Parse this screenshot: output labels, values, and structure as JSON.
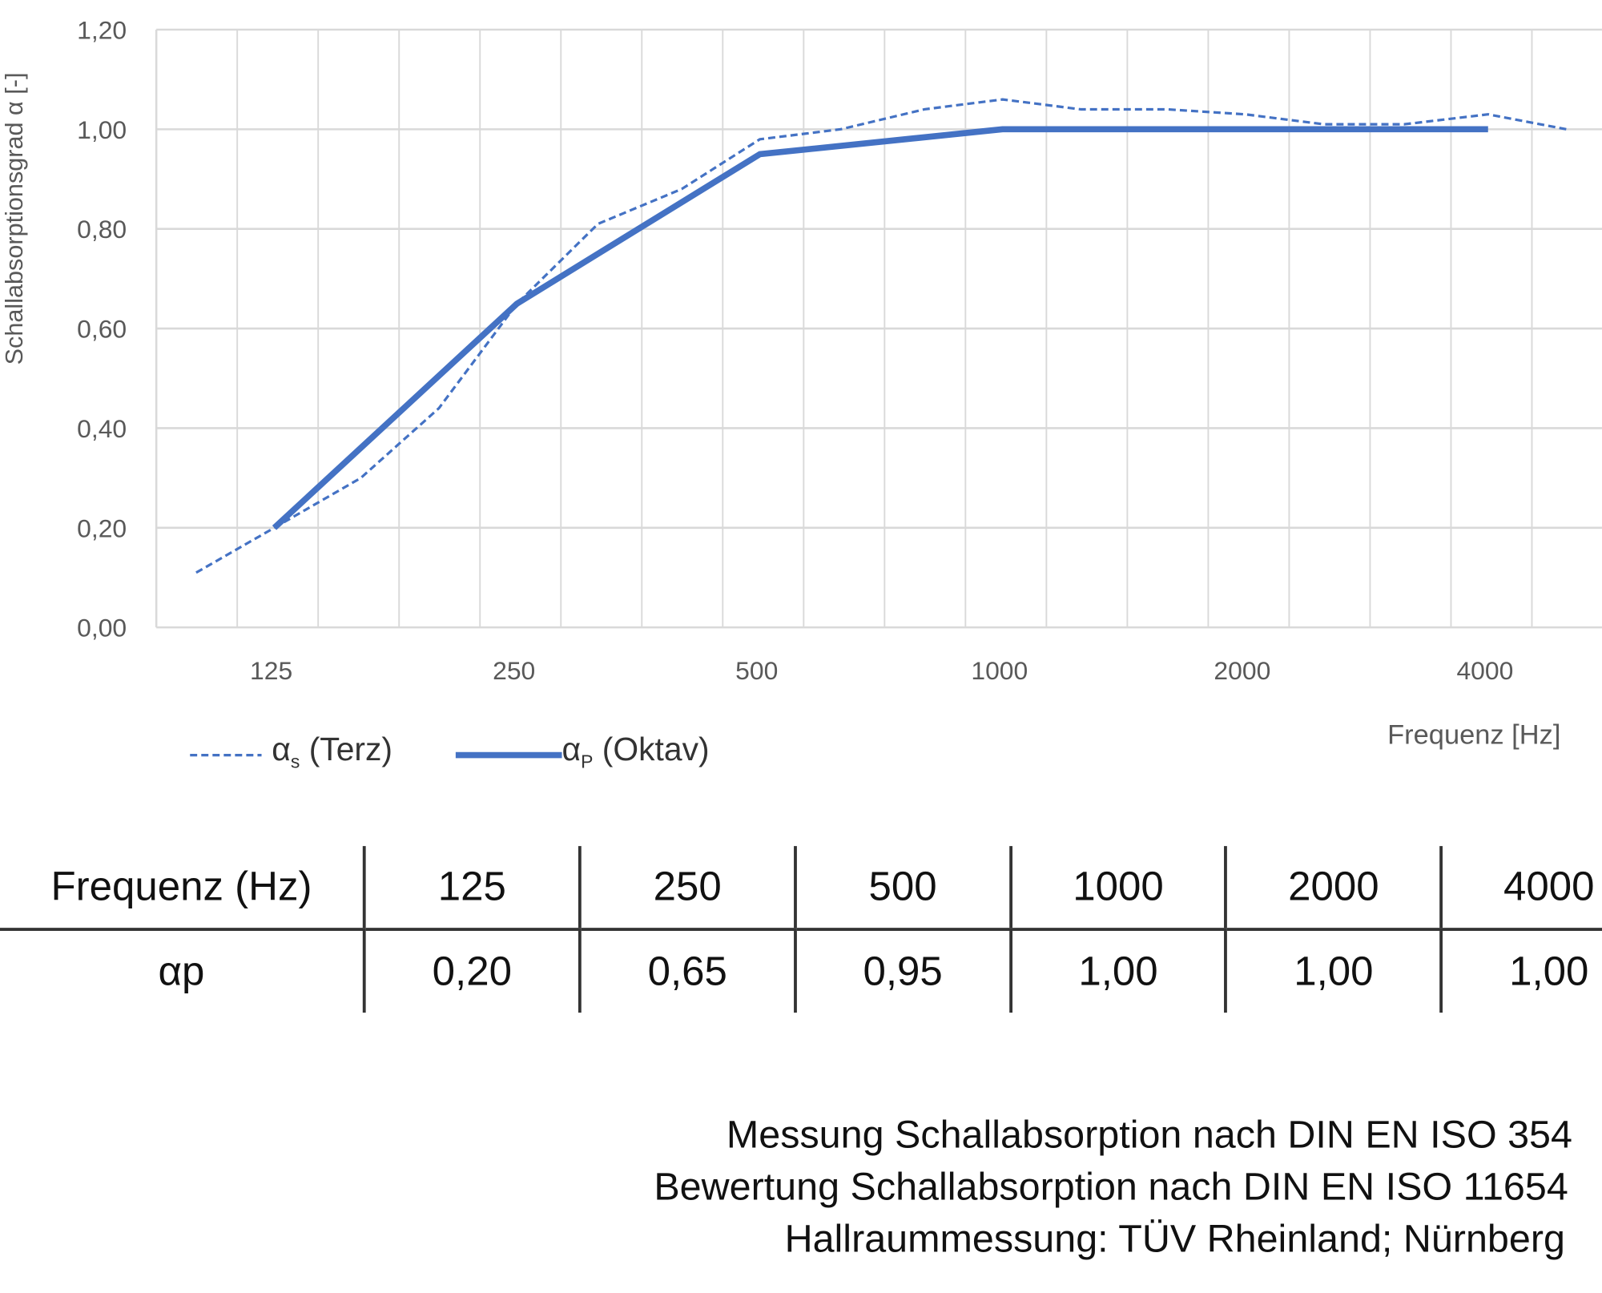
{
  "chart_data": {
    "type": "line",
    "ylabel": "Schallabsorptionsgrad α [-]",
    "xlabel": "Frequenz [Hz]",
    "ylim": [
      0,
      1.2
    ],
    "y_ticks": [
      "0,00",
      "0,20",
      "0,40",
      "0,60",
      "0,80",
      "1,00",
      "1,20"
    ],
    "x_scale": "log (third-octave)",
    "x_tick_labels": [
      "125",
      "250",
      "500",
      "1000",
      "2000",
      "4000"
    ],
    "grid": true,
    "legend_position": "bottom-left",
    "color": "#4472C4",
    "series": [
      {
        "name": "αs (Terz)",
        "style": "dashed",
        "x": [
          100,
          125,
          160,
          200,
          250,
          315,
          400,
          500,
          630,
          800,
          1000,
          1250,
          1600,
          2000,
          2500,
          3150,
          4000,
          5000
        ],
        "values": [
          0.11,
          0.2,
          0.3,
          0.44,
          0.65,
          0.81,
          0.88,
          0.98,
          1.0,
          1.04,
          1.06,
          1.04,
          1.04,
          1.03,
          1.01,
          1.01,
          1.03,
          1.0
        ]
      },
      {
        "name": "αp (Oktav)",
        "style": "solid",
        "x": [
          125,
          250,
          500,
          1000,
          2000,
          4000
        ],
        "values": [
          0.2,
          0.65,
          0.95,
          1.0,
          1.0,
          1.0
        ]
      }
    ]
  },
  "legend": {
    "terz_symbol": "α",
    "terz_sub": "s",
    "terz_text": " (Terz)",
    "oktav_symbol": "α",
    "oktav_sub": "P",
    "oktav_text": " (Oktav)"
  },
  "table": {
    "header": [
      "Frequenz (Hz)",
      "125",
      "250",
      "500",
      "1000",
      "2000",
      "4000"
    ],
    "row_label": "αp",
    "row": [
      "0,20",
      "0,65",
      "0,95",
      "1,00",
      "1,00",
      "1,00"
    ]
  },
  "footer": [
    "Messung Schallabsorption nach DIN EN ISO 354",
    "Bewertung Schallabsorption nach DIN EN ISO 11654",
    "Hallraummessung: TÜV Rheinland; Nürnberg"
  ]
}
